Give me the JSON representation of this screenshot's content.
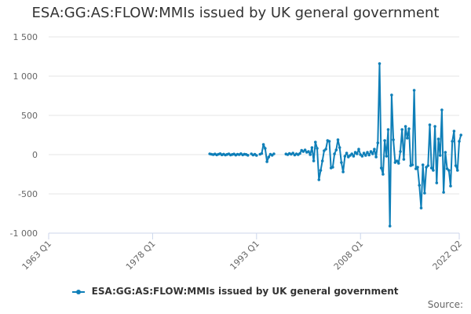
{
  "chart_data": {
    "type": "line",
    "title": "ESA:GG:AS:FLOW:MMIs issued by UK general government",
    "xlabel": "",
    "ylabel": "",
    "ylim": [
      -1000,
      1500
    ],
    "y_ticks": [
      1500,
      1000,
      500,
      0,
      -500,
      -1000
    ],
    "y_tick_labels": [
      "1 500",
      "1 000",
      "500",
      "0",
      "-500",
      "-1 000"
    ],
    "x_range": [
      1963.0,
      2022.25
    ],
    "x_ticks": [
      1963.0,
      1978.0,
      1993.0,
      2008.0,
      2022.25
    ],
    "x_tick_labels": [
      "1963 Q1",
      "1978 Q1",
      "1993 Q1",
      "2008 Q1",
      "2022 Q2"
    ],
    "grid": true,
    "legend_position": "bottom",
    "color": "#0f7fb8",
    "series": [
      {
        "name": "ESA:GG:AS:FLOW:MMIs issued by UK general government",
        "segments": [
          [
            [
              1986.25,
              10
            ],
            [
              1986.5,
              5
            ],
            [
              1986.75,
              0
            ],
            [
              1987.0,
              8
            ],
            [
              1987.25,
              -3
            ],
            [
              1987.5,
              5
            ],
            [
              1987.75,
              12
            ],
            [
              1988.0,
              -2
            ],
            [
              1988.25,
              6
            ],
            [
              1988.5,
              -5
            ],
            [
              1988.75,
              3
            ],
            [
              1989.0,
              10
            ],
            [
              1989.25,
              -4
            ],
            [
              1989.5,
              2
            ],
            [
              1989.75,
              8
            ],
            [
              1990.0,
              -6
            ],
            [
              1990.25,
              5
            ],
            [
              1990.5,
              0
            ],
            [
              1990.75,
              12
            ],
            [
              1991.0,
              -3
            ],
            [
              1991.25,
              6
            ],
            [
              1991.5,
              2
            ],
            [
              1991.75,
              -8
            ]
          ],
          [
            [
              1992.25,
              10
            ],
            [
              1992.5,
              -5
            ],
            [
              1992.75,
              4
            ],
            [
              1993.0,
              -10
            ]
          ],
          [
            [
              1993.5,
              5
            ],
            [
              1993.75,
              15
            ],
            [
              1994.0,
              130
            ],
            [
              1994.25,
              80
            ],
            [
              1994.5,
              -90
            ],
            [
              1994.75,
              -30
            ],
            [
              1995.0,
              5
            ],
            [
              1995.25,
              -8
            ],
            [
              1995.5,
              10
            ]
          ],
          [
            [
              1997.25,
              8
            ],
            [
              1997.5,
              0
            ],
            [
              1997.75,
              15
            ],
            [
              1998.0,
              5
            ],
            [
              1998.25,
              20
            ],
            [
              1998.5,
              -5
            ],
            [
              1998.75,
              10
            ],
            [
              1999.0,
              0
            ]
          ],
          [
            [
              1999.25,
              15
            ],
            [
              1999.5,
              55
            ],
            [
              1999.75,
              40
            ],
            [
              2000.0,
              60
            ],
            [
              2000.25,
              30
            ],
            [
              2000.5,
              40
            ],
            [
              2000.75,
              0
            ],
            [
              2001.0,
              90
            ],
            [
              2001.25,
              -80
            ],
            [
              2001.5,
              160
            ],
            [
              2001.75,
              80
            ],
            [
              2002.0,
              -320
            ],
            [
              2002.25,
              -200
            ],
            [
              2002.5,
              -80
            ],
            [
              2002.75,
              50
            ],
            [
              2003.0,
              70
            ],
            [
              2003.25,
              180
            ],
            [
              2003.5,
              170
            ],
            [
              2003.75,
              -170
            ],
            [
              2004.0,
              -160
            ],
            [
              2004.25,
              10
            ],
            [
              2004.5,
              60
            ],
            [
              2004.75,
              190
            ],
            [
              2005.0,
              90
            ],
            [
              2005.25,
              -100
            ],
            [
              2005.5,
              -220
            ],
            [
              2005.75,
              -20
            ],
            [
              2006.0,
              20
            ],
            [
              2006.25,
              -30
            ],
            [
              2006.5,
              -10
            ],
            [
              2006.75,
              10
            ],
            [
              2007.0,
              -20
            ],
            [
              2007.25,
              30
            ],
            [
              2007.5,
              10
            ],
            [
              2007.75,
              70
            ],
            [
              2008.0,
              0
            ]
          ],
          [
            [
              2008.25,
              -20
            ],
            [
              2008.5,
              20
            ],
            [
              2008.75,
              -10
            ],
            [
              2009.0,
              30
            ],
            [
              2009.25,
              -5
            ],
            [
              2009.5,
              40
            ],
            [
              2009.75,
              10
            ],
            [
              2010.0,
              70
            ],
            [
              2010.25,
              -30
            ],
            [
              2010.5,
              150
            ],
            [
              2010.75,
              1160
            ],
            [
              2011.0,
              -170
            ],
            [
              2011.25,
              -250
            ],
            [
              2011.5,
              180
            ],
            [
              2011.75,
              -20
            ],
            [
              2012.0,
              320
            ],
            [
              2012.25,
              -910
            ],
            [
              2012.5,
              760
            ],
            [
              2012.75,
              190
            ],
            [
              2013.0,
              -100
            ],
            [
              2013.25,
              -80
            ],
            [
              2013.5,
              -110
            ],
            [
              2013.75,
              40
            ],
            [
              2014.0,
              320
            ],
            [
              2014.25,
              -60
            ],
            [
              2014.5,
              360
            ],
            [
              2014.75,
              210
            ],
            [
              2015.0,
              330
            ],
            [
              2015.25,
              -140
            ],
            [
              2015.5,
              -130
            ],
            [
              2015.75,
              820
            ],
            [
              2016.0,
              -180
            ],
            [
              2016.25,
              -160
            ],
            [
              2016.5,
              -390
            ],
            [
              2016.75,
              -680
            ],
            [
              2017.0,
              -130
            ],
            [
              2017.25,
              -490
            ],
            [
              2017.5,
              -160
            ],
            [
              2017.75,
              -140
            ],
            [
              2018.0,
              380
            ],
            [
              2018.25,
              -170
            ],
            [
              2018.5,
              -200
            ],
            [
              2018.75,
              360
            ],
            [
              2019.0,
              -360
            ],
            [
              2019.25,
              200
            ],
            [
              2019.5,
              -10
            ],
            [
              2019.75,
              570
            ],
            [
              2020.0,
              -480
            ],
            [
              2020.25,
              30
            ],
            [
              2020.5,
              -180
            ],
            [
              2020.75,
              -200
            ],
            [
              2021.0,
              -400
            ],
            [
              2021.25,
              170
            ],
            [
              2021.5,
              300
            ],
            [
              2021.75,
              -140
            ],
            [
              2022.0,
              -200
            ],
            [
              2022.25,
              170
            ],
            [
              2022.5,
              250
            ]
          ]
        ]
      }
    ]
  },
  "source_label": "Source:"
}
